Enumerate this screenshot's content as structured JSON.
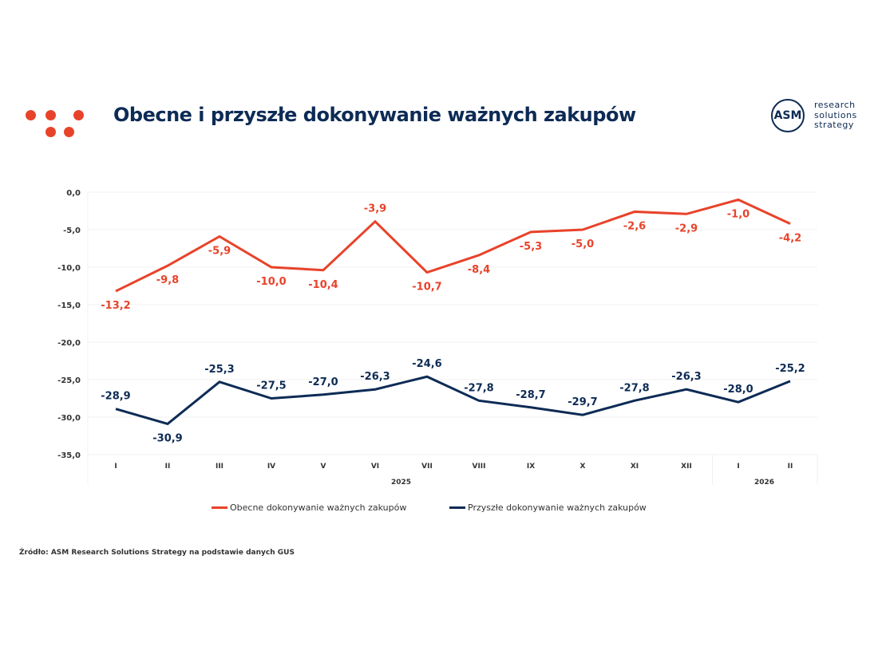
{
  "header": {
    "title": "Obecne i przyszłe dokonywanie ważnych zakupów",
    "logo": {
      "mark": "ASM",
      "lines": [
        "research",
        "solutions",
        "strategy"
      ]
    }
  },
  "colors": {
    "current": "#e8432a",
    "future": "#0d2b55",
    "text": "#333333",
    "grid": "#f0f0f0"
  },
  "chart_data": {
    "type": "line",
    "title": "Obecne i przyszłe dokonywanie ważnych zakupów",
    "categories": [
      "I",
      "II",
      "III",
      "IV",
      "V",
      "VI",
      "VII",
      "VIII",
      "IX",
      "X",
      "XI",
      "XII",
      "I",
      "II"
    ],
    "year_groups": [
      {
        "label": "2025",
        "count": 12
      },
      {
        "label": "2026",
        "count": 2
      }
    ],
    "ylim": [
      -35,
      0
    ],
    "yticks": [
      0,
      -5,
      -10,
      -15,
      -20,
      -25,
      -30,
      -35
    ],
    "ytick_labels": [
      "0,0",
      "-5,0",
      "-10,0",
      "-15,0",
      "-20,0",
      "-25,0",
      "-30,0",
      "-35,0"
    ],
    "grid": true,
    "legend_position": "bottom",
    "series": [
      {
        "name": "Obecne dokonywanie ważnych zakupów",
        "values": [
          -13.2,
          -9.8,
          -5.9,
          -10.0,
          -10.4,
          -3.9,
          -10.7,
          -8.4,
          -5.3,
          -5.0,
          -2.6,
          -2.9,
          -1.0,
          -4.2
        ],
        "labels": [
          "-13,2",
          "-9,8",
          "-5,9",
          "-10,0",
          "-10,4",
          "-3,9",
          "-10,7",
          "-8,4",
          "-5,3",
          "-5,0",
          "-2,6",
          "-2,9",
          "-1,0",
          "-4,2"
        ],
        "label_pos": [
          "below",
          "below",
          "below",
          "below",
          "below",
          "above",
          "below",
          "below",
          "below",
          "below",
          "below",
          "below",
          "below",
          "below"
        ]
      },
      {
        "name": "Przyszłe dokonywanie ważnych zakupów",
        "values": [
          -28.9,
          -30.9,
          -25.3,
          -27.5,
          -27.0,
          -26.3,
          -24.6,
          -27.8,
          -28.7,
          -29.7,
          -27.8,
          -26.3,
          -28.0,
          -25.2
        ],
        "labels": [
          "-28,9",
          "-30,9",
          "-25,3",
          "-27,5",
          "-27,0",
          "-26,3",
          "-24,6",
          "-27,8",
          "-28,7",
          "-29,7",
          "-27,8",
          "-26,3",
          "-28,0",
          "-25,2"
        ],
        "label_pos": [
          "above",
          "below",
          "above",
          "above",
          "above",
          "above",
          "above",
          "above",
          "above",
          "above",
          "above",
          "above",
          "above",
          "above"
        ]
      }
    ]
  },
  "footer": {
    "source": "Źródło: ASM  Research Solutions Strategy na podstawie danych GUS"
  }
}
